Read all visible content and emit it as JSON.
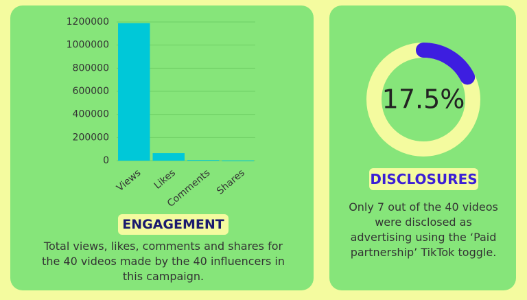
{
  "chart_data": [
    {
      "type": "bar",
      "title": "ENGAGEMENT",
      "caption": "Total views, likes, comments and shares for the 40 videos made by the 40 influencers in this campaign.",
      "categories": [
        "Views",
        "Likes",
        "Comments",
        "Shares"
      ],
      "values": [
        1190000,
        65000,
        5000,
        2000
      ],
      "color": "#00c8d8",
      "ylim": [
        0,
        1200000
      ],
      "yticks": [
        0,
        200000,
        400000,
        600000,
        800000,
        1000000,
        1200000
      ],
      "grid": true
    },
    {
      "type": "donut",
      "title": "DISCLOSURES",
      "caption": "Only 7 out of the 40 videos were disclosed as advertising using the ‘Paid partnership’ TikTok toggle.",
      "values": [
        17.5
      ],
      "value_labels": [
        "17.5%"
      ],
      "color": "#3d1ee0"
    }
  ]
}
